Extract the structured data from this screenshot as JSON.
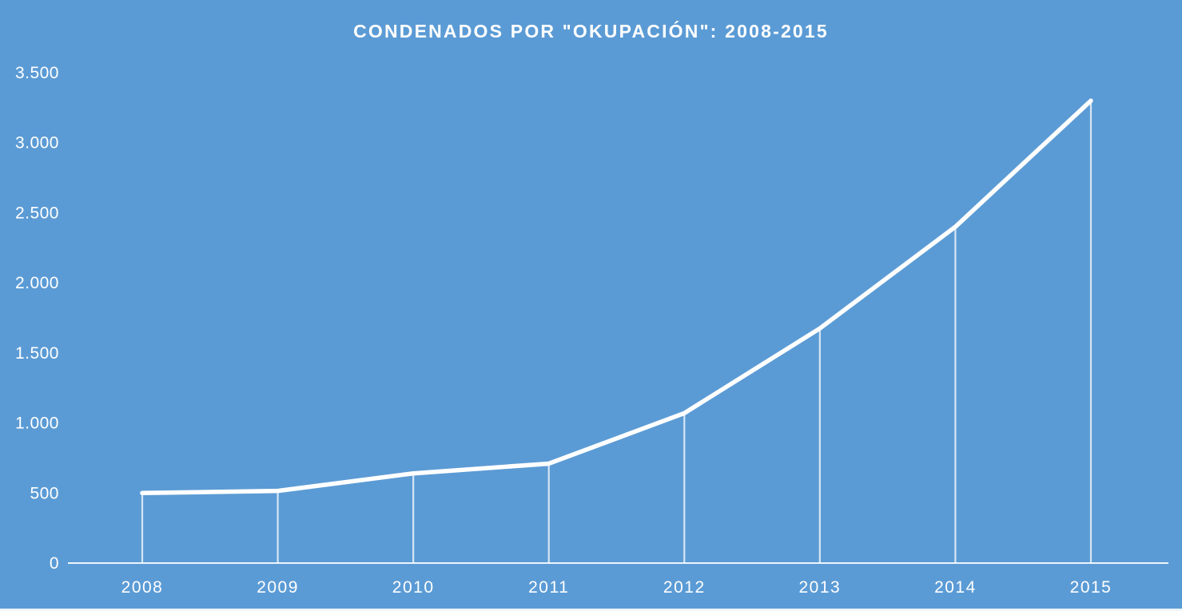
{
  "chart_data": {
    "type": "line",
    "title": "CONDENADOS POR \"OKUPACIÓN\": 2008-2015",
    "categories": [
      "2008",
      "2009",
      "2010",
      "2011",
      "2012",
      "2013",
      "2014",
      "2015"
    ],
    "values": [
      500,
      515,
      640,
      710,
      1070,
      1675,
      2400,
      3300
    ],
    "xlabel": "",
    "ylabel": "",
    "ylim": [
      0,
      3500
    ],
    "y_tick_values": [
      0,
      500,
      1000,
      1500,
      2000,
      2500,
      3000,
      3500
    ],
    "y_tick_labels": [
      "0",
      "500",
      "1.000",
      "1.500",
      "2.000",
      "2.500",
      "3.000",
      "3.500"
    ],
    "grid": false,
    "legend": false,
    "marker_drop_lines": true,
    "colors": {
      "background": "#5b9bd5",
      "line": "#ffffff",
      "text": "#ffffff"
    }
  }
}
